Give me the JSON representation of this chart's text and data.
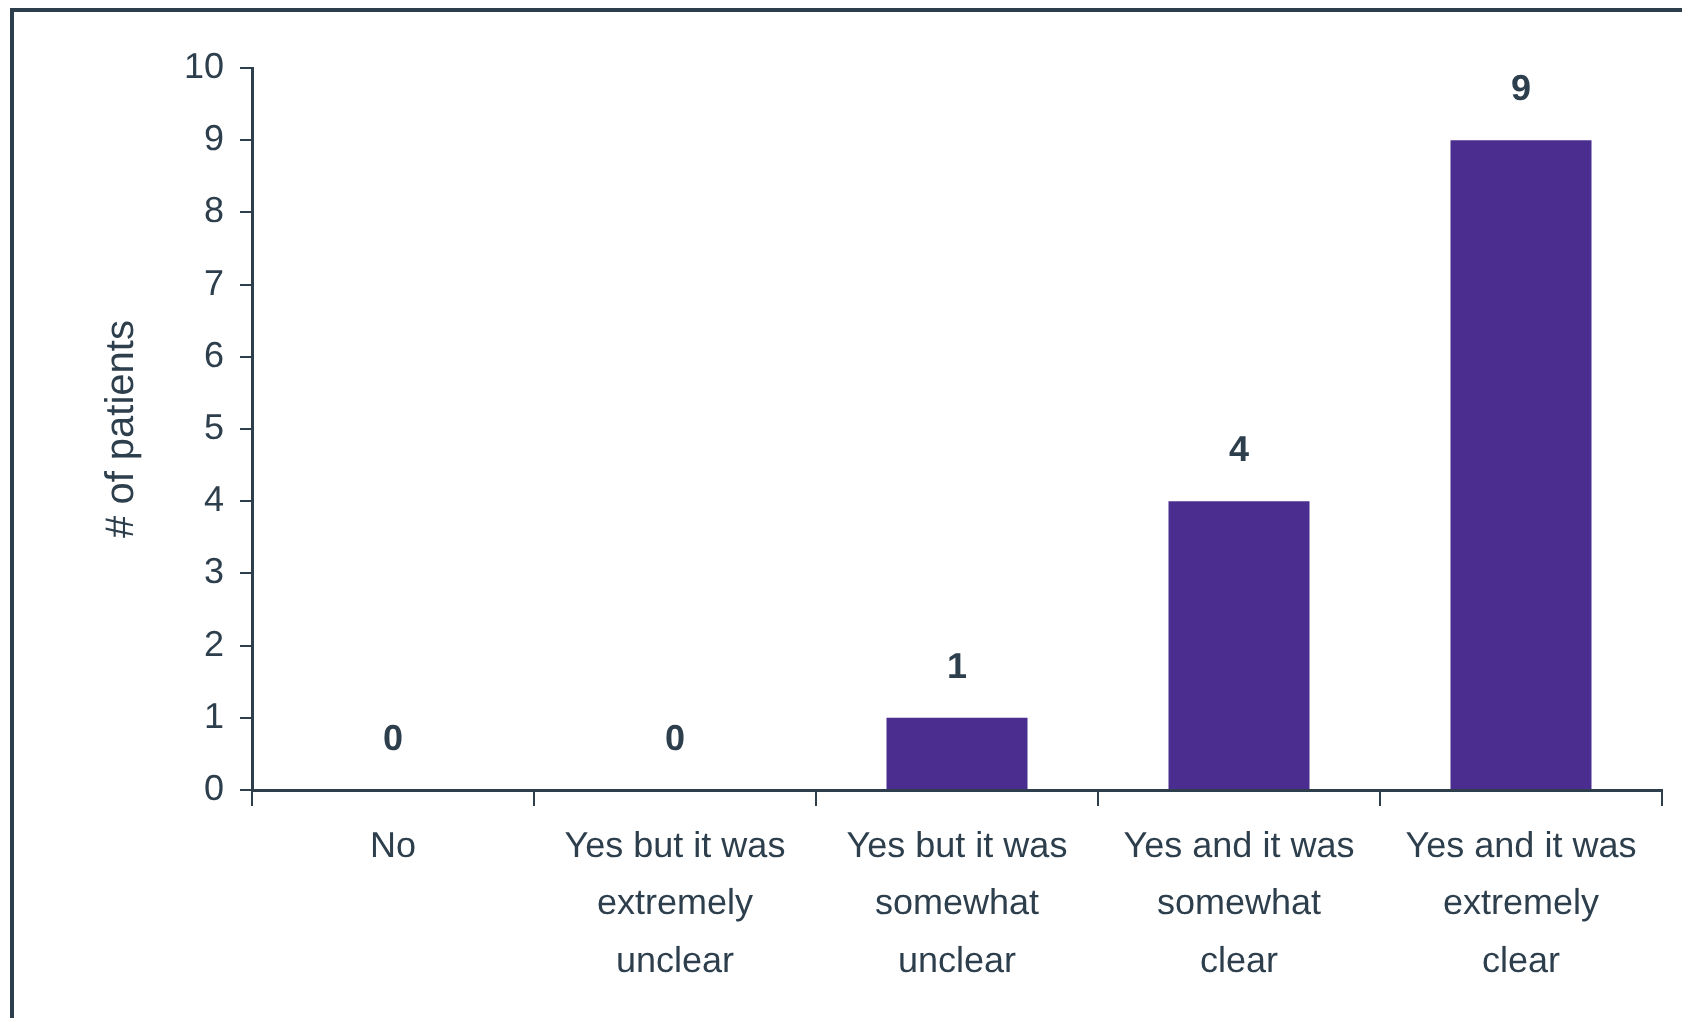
{
  "chart_data": {
    "type": "bar",
    "ylabel": "# of patients",
    "categories": [
      "No",
      "Yes but it was extremely unclear",
      "Yes but it was somewhat unclear",
      "Yes and it was somewhat clear",
      "Yes and it was extremely clear"
    ],
    "values": [
      0,
      0,
      1,
      4,
      9
    ],
    "color": "#4b2d8f",
    "ylim": [
      0,
      10
    ],
    "yticks": [
      0,
      1,
      2,
      3,
      4,
      5,
      6,
      7,
      8,
      9,
      10
    ],
    "data_labels": true
  }
}
